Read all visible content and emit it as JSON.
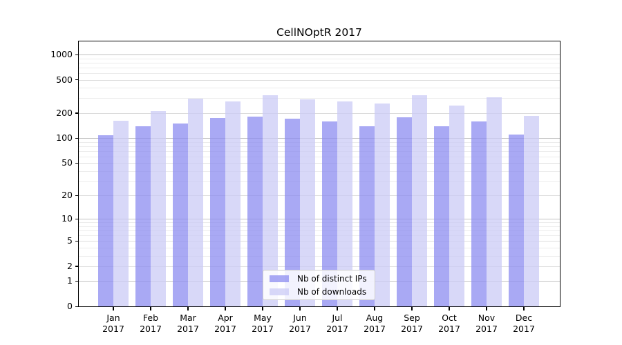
{
  "title": "CellNOptR 2017",
  "chart_data": {
    "type": "bar",
    "title": "CellNOptR 2017",
    "categories": [
      "Jan",
      "Feb",
      "Mar",
      "Apr",
      "May",
      "Jun",
      "Jul",
      "Aug",
      "Sep",
      "Oct",
      "Nov",
      "Dec"
    ],
    "year_label": "2017",
    "series": [
      {
        "name": "Nb of distinct IPs",
        "color": "#8c8cf0",
        "values": [
          108,
          138,
          149,
          174,
          183,
          170,
          158,
          139,
          177,
          138,
          158,
          110
        ]
      },
      {
        "name": "Nb of downloads",
        "color": "#cbcbf6",
        "values": [
          163,
          210,
          295,
          277,
          325,
          290,
          274,
          260,
          327,
          248,
          307,
          184
        ]
      }
    ],
    "ylabel": "",
    "xlabel": "",
    "y_scale": "log10(value+1)",
    "y_ticks": [
      0,
      1,
      2,
      5,
      10,
      20,
      50,
      100,
      200,
      500,
      1000
    ],
    "y_minor_gridlines": [
      3,
      4,
      6,
      7,
      8,
      9,
      30,
      40,
      60,
      70,
      80,
      90,
      300,
      400,
      600,
      700,
      800,
      900
    ],
    "y_major_gridlines": [
      1,
      10,
      100,
      1000
    ],
    "ylim": [
      0,
      1400
    ],
    "grid": "horizontal",
    "legend_position": "bottom-center",
    "bar_alpha": 0.75,
    "background_color": "#ffffff",
    "axis_color": "#000000"
  }
}
